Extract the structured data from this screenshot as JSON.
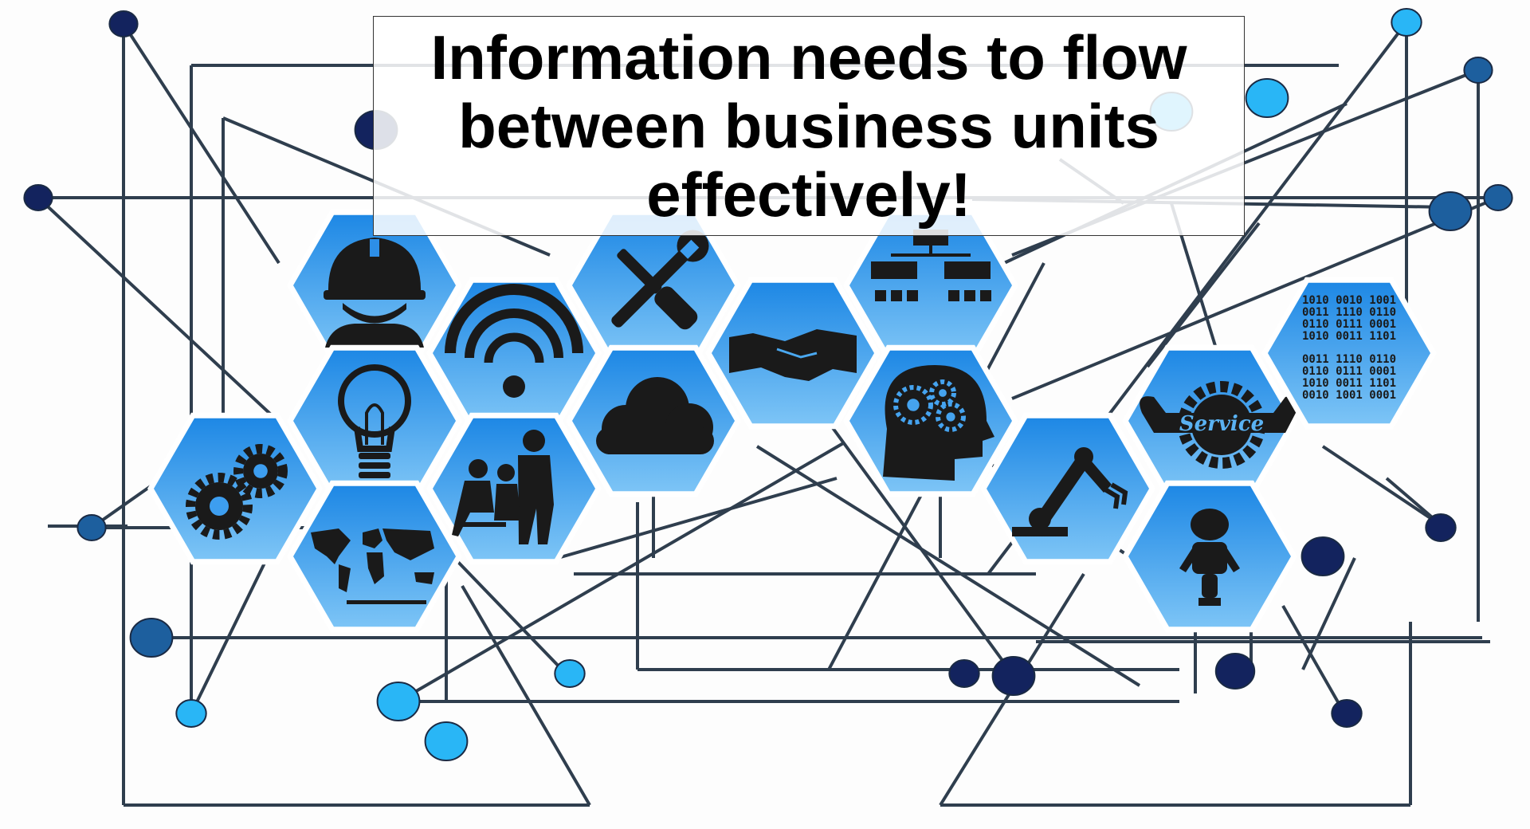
{
  "banner": {
    "lines": [
      "Information needs to flow",
      "between business units",
      "effectively!"
    ]
  },
  "colors": {
    "background": "#fdfdfd",
    "hex_top": "#1e88e5",
    "hex_bottom": "#7cc4f6",
    "icon": "#1a1a1a",
    "line": "#2f3e4e",
    "node_dark": "#13235e",
    "node_light": "#29b6f6"
  },
  "tiles": [
    {
      "icon": "worker-helmet-icon"
    },
    {
      "icon": "wifi-icon"
    },
    {
      "icon": "wrench-screwdriver-icon"
    },
    {
      "icon": "handshake-icon"
    },
    {
      "icon": "org-chart-icon"
    },
    {
      "icon": "lightbulb-icon"
    },
    {
      "icon": "cloud-icon"
    },
    {
      "icon": "brain-gears-icon"
    },
    {
      "icon": "gears-icon"
    },
    {
      "icon": "team-meeting-icon"
    },
    {
      "icon": "world-map-icon"
    },
    {
      "icon": "robot-arm-icon"
    },
    {
      "icon": "service-gear-icon"
    },
    {
      "icon": "robot-icon"
    },
    {
      "icon": "binary-code-icon"
    }
  ],
  "binary_code": {
    "rows": [
      "1010 0010 1001",
      "0011 1110 0110",
      "0110 0111 0001",
      "1010 0011 1101",
      "0011 1110 0110",
      "0110 0111 0001",
      "1010 0011 1101",
      "0010 1001 0001"
    ]
  },
  "service_label": "Service"
}
